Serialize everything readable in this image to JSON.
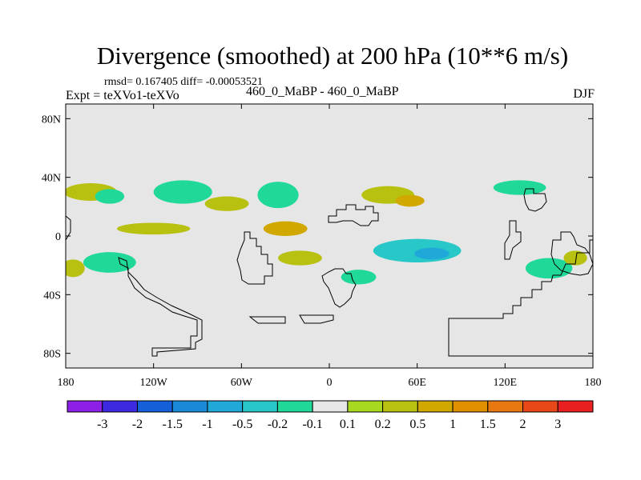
{
  "title": "Divergence (smoothed) at 200 hPa (10**6 m/s)",
  "stats": "rmsd= 0.167405  diff= -0.00053521",
  "expt_label": "Expt = teXVo1-teXVo",
  "center_label": "460_0_MaBP - 460_0_MaBP",
  "season": "DJF",
  "colors": {
    "background_field": "#e6e6e6",
    "coast": "#000000"
  },
  "chart_data": {
    "type": "heatmap",
    "projection": "cylindrical equidistant",
    "lon_range": [
      -180,
      180
    ],
    "lat_range": [
      -90,
      90
    ],
    "x_ticks": [
      {
        "value": -180,
        "label": "180"
      },
      {
        "value": -120,
        "label": "120W"
      },
      {
        "value": -60,
        "label": "60W"
      },
      {
        "value": 0,
        "label": "0"
      },
      {
        "value": 60,
        "label": "60E"
      },
      {
        "value": 120,
        "label": "120E"
      },
      {
        "value": 180,
        "label": "180"
      }
    ],
    "y_ticks": [
      {
        "value": 80,
        "label": "80N"
      },
      {
        "value": 40,
        "label": "40N"
      },
      {
        "value": 0,
        "label": "0"
      },
      {
        "value": -40,
        "label": "40S"
      },
      {
        "value": -80,
        "label": "80S"
      }
    ],
    "colorbar": {
      "colors": [
        "#8e1fe6",
        "#3d2ae0",
        "#1560d8",
        "#1a8ad8",
        "#20a8d8",
        "#28c8c8",
        "#20d898",
        "#e6e6e6",
        "#a8d820",
        "#b8c010",
        "#d0a800",
        "#e09000",
        "#e87810",
        "#e84818",
        "#e82020"
      ],
      "labels": [
        "-3",
        "-2",
        "-1.5",
        "-1",
        "-0.5",
        "-0.2",
        "-0.1",
        "0.1",
        "0.2",
        "0.5",
        "1",
        "1.5",
        "2",
        "3"
      ]
    },
    "regions": [
      {
        "name": "nh-band-west",
        "level": "0.2",
        "lon": -163,
        "lat": 30,
        "rlon": 18,
        "rlat": 6
      },
      {
        "name": "nh-band-west-neg",
        "level": "-0.1",
        "lon": -150,
        "lat": 27,
        "rlon": 10,
        "rlat": 5
      },
      {
        "name": "nh-band-central",
        "level": "-0.1",
        "lon": -100,
        "lat": 30,
        "rlon": 20,
        "rlat": 8
      },
      {
        "name": "nh-band-central-pos",
        "level": "0.2",
        "lon": -70,
        "lat": 22,
        "rlon": 15,
        "rlat": 5
      },
      {
        "name": "nh-band-east",
        "level": "-0.1",
        "lon": -35,
        "lat": 28,
        "rlon": 14,
        "rlat": 9
      },
      {
        "name": "nh-asia-pos",
        "level": "0.2",
        "lon": 40,
        "lat": 28,
        "rlon": 18,
        "rlat": 6
      },
      {
        "name": "nh-asia-strong",
        "level": "0.5",
        "lon": 55,
        "lat": 24,
        "rlon": 10,
        "rlat": 4
      },
      {
        "name": "nh-pacific-neg",
        "level": "-0.1",
        "lon": 130,
        "lat": 33,
        "rlon": 18,
        "rlat": 5
      },
      {
        "name": "eq-band-pos",
        "level": "0.2",
        "lon": -120,
        "lat": 5,
        "rlon": 25,
        "rlat": 4
      },
      {
        "name": "eq-atlantic-pos",
        "level": "0.5",
        "lon": -30,
        "lat": 5,
        "rlon": 15,
        "rlat": 5
      },
      {
        "name": "eq-indian-neg",
        "level": "-0.2",
        "lon": 60,
        "lat": -10,
        "rlon": 30,
        "rlat": 8
      },
      {
        "name": "eq-indian-core",
        "level": "-0.5",
        "lon": 70,
        "lat": -12,
        "rlon": 12,
        "rlat": 4
      },
      {
        "name": "sh-band-west",
        "level": "-0.1",
        "lon": -150,
        "lat": -18,
        "rlon": 18,
        "rlat": 7
      },
      {
        "name": "sh-band-pos",
        "level": "0.2",
        "lon": -175,
        "lat": -22,
        "rlon": 8,
        "rlat": 6
      },
      {
        "name": "sh-atlantic-pos",
        "level": "0.2",
        "lon": -20,
        "lat": -15,
        "rlon": 15,
        "rlat": 5
      },
      {
        "name": "sh-africa-neg",
        "level": "-0.1",
        "lon": 20,
        "lat": -28,
        "rlon": 12,
        "rlat": 5
      },
      {
        "name": "sh-pacific-neg",
        "level": "-0.1",
        "lon": 150,
        "lat": -22,
        "rlon": 16,
        "rlat": 7
      },
      {
        "name": "sh-pacific-pos",
        "level": "0.2",
        "lon": 168,
        "lat": -15,
        "rlon": 8,
        "rlat": 5
      }
    ]
  }
}
